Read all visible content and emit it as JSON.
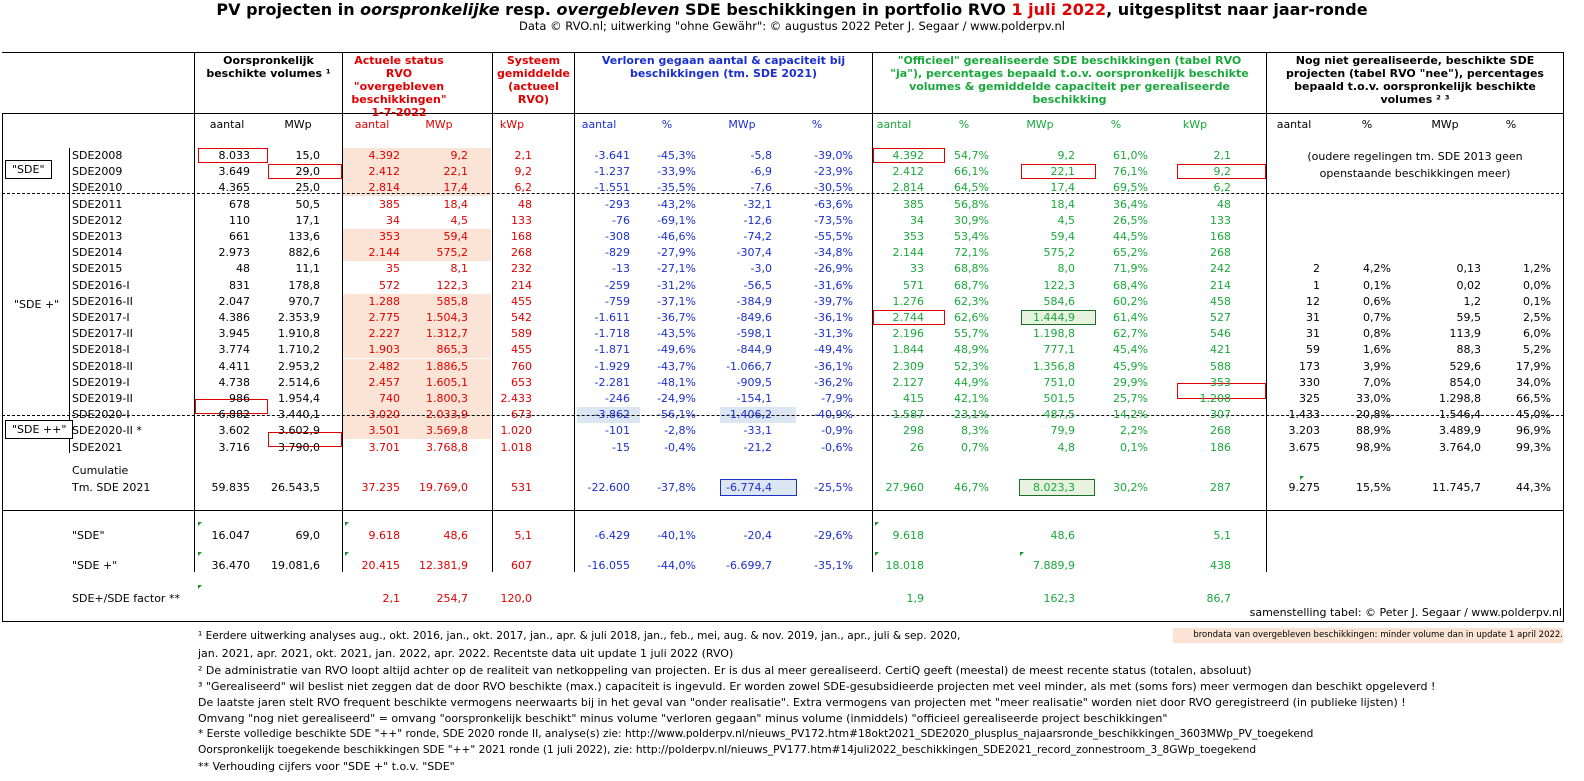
{
  "title": {
    "p1": "PV projecten in ",
    "p2": "oorspronkelijke",
    "p3": "  resp. ",
    "p4": "overgebleven",
    "p5": " SDE beschikkingen in portfolio RVO ",
    "p6": "1 juli 2022",
    "p7": ", uitgesplitst naar jaar-ronde"
  },
  "subtitle": "Data © RVO.nl; uitwerking \"ohne Gewähr\": © augustus 2022 Peter J. Segaar / www.polderpv.nl",
  "headers": {
    "orig": "Oorspronkelijk\nbeschikte volumes ¹",
    "actueel": "Actuele status RVO\n\"overgebleven\nbeschikkingen\"\n1-7-2022",
    "systeem": "Systeem\ngemiddelde\n(actueel\nRVO)",
    "verloren": "Verloren gegaan aantal & capaciteit bij\nbeschikkingen (tm. SDE 2021)",
    "gerealiseerd": "\"Officieel\" gerealiseerde SDE beschikkingen (tabel RVO\n\"ja\"), percentages bepaald t.o.v. oorspronkelijk beschikte\nvolumes & gemiddelde capaciteit per gerealiseerde\nbeschikking",
    "niet": "Nog niet gerealiseerde, beschikte SDE\nprojecten (tabel RVO \"nee\"), percentages\nbepaald t.o.v. oorspronkelijk beschikte\nvolumes ² ³"
  },
  "subheaders": [
    "aantal",
    "MWp",
    "aantal",
    "MWp",
    "kWp",
    "aantal",
    "%",
    "MWp",
    "%",
    "aantal",
    "%",
    "MWp",
    "%",
    "kWp",
    "aantal",
    "%",
    "MWp",
    "%"
  ],
  "groups": {
    "sde": "\"SDE\"",
    "sdeplus": "\"SDE +\"",
    "sdeplusplus": "\"SDE ++\""
  },
  "old_rounds_note": "(oudere regelingen tm. SDE 2013 geen\nopenstaande beschikkingen meer)",
  "rows": [
    {
      "name": "SDE2008",
      "v": [
        "8.033",
        "15,0",
        "4.392",
        "9,2",
        "2,1",
        "-3.641",
        "-45,3%",
        "-5,8",
        "-39,0%",
        "4.392",
        "54,7%",
        "9,2",
        "61,0%",
        "2,1",
        "",
        "",
        "",
        ""
      ]
    },
    {
      "name": "SDE2009",
      "v": [
        "3.649",
        "29,0",
        "2.412",
        "22,1",
        "9,2",
        "-1.237",
        "-33,9%",
        "-6,9",
        "-23,9%",
        "2.412",
        "66,1%",
        "22,1",
        "76,1%",
        "9,2",
        "",
        "",
        "",
        ""
      ]
    },
    {
      "name": "SDE2010",
      "v": [
        "4.365",
        "25,0",
        "2.814",
        "17,4",
        "6,2",
        "-1.551",
        "-35,5%",
        "-7,6",
        "-30,5%",
        "2.814",
        "64,5%",
        "17,4",
        "69,5%",
        "6,2",
        "",
        "",
        "",
        ""
      ]
    },
    {
      "name": "SDE2011",
      "v": [
        "678",
        "50,5",
        "385",
        "18,4",
        "48",
        "-293",
        "-43,2%",
        "-32,1",
        "-63,6%",
        "385",
        "56,8%",
        "18,4",
        "36,4%",
        "48",
        "",
        "",
        "",
        ""
      ]
    },
    {
      "name": "SDE2012",
      "v": [
        "110",
        "17,1",
        "34",
        "4,5",
        "133",
        "-76",
        "-69,1%",
        "-12,6",
        "-73,5%",
        "34",
        "30,9%",
        "4,5",
        "26,5%",
        "133",
        "",
        "",
        "",
        ""
      ]
    },
    {
      "name": "SDE2013",
      "v": [
        "661",
        "133,6",
        "353",
        "59,4",
        "168",
        "-308",
        "-46,6%",
        "-74,2",
        "-55,5%",
        "353",
        "53,4%",
        "59,4",
        "44,5%",
        "168",
        "",
        "",
        "",
        ""
      ]
    },
    {
      "name": "SDE2014",
      "v": [
        "2.973",
        "882,6",
        "2.144",
        "575,2",
        "268",
        "-829",
        "-27,9%",
        "-307,4",
        "-34,8%",
        "2.144",
        "72,1%",
        "575,2",
        "65,2%",
        "268",
        "",
        "",
        "",
        ""
      ]
    },
    {
      "name": "SDE2015",
      "v": [
        "48",
        "11,1",
        "35",
        "8,1",
        "232",
        "-13",
        "-27,1%",
        "-3,0",
        "-26,9%",
        "33",
        "68,8%",
        "8,0",
        "71,9%",
        "242",
        "2",
        "4,2%",
        "0,13",
        "1,2%"
      ]
    },
    {
      "name": "SDE2016-I",
      "v": [
        "831",
        "178,8",
        "572",
        "122,3",
        "214",
        "-259",
        "-31,2%",
        "-56,5",
        "-31,6%",
        "571",
        "68,7%",
        "122,3",
        "68,4%",
        "214",
        "1",
        "0,1%",
        "0,02",
        "0,0%"
      ]
    },
    {
      "name": "SDE2016-II",
      "v": [
        "2.047",
        "970,7",
        "1.288",
        "585,8",
        "455",
        "-759",
        "-37,1%",
        "-384,9",
        "-39,7%",
        "1.276",
        "62,3%",
        "584,6",
        "60,2%",
        "458",
        "12",
        "0,6%",
        "1,2",
        "0,1%"
      ]
    },
    {
      "name": "SDE2017-I",
      "v": [
        "4.386",
        "2.353,9",
        "2.775",
        "1.504,3",
        "542",
        "-1.611",
        "-36,7%",
        "-849,6",
        "-36,1%",
        "2.744",
        "62,6%",
        "1.444,9",
        "61,4%",
        "527",
        "31",
        "0,7%",
        "59,5",
        "2,5%"
      ]
    },
    {
      "name": "SDE2017-II",
      "v": [
        "3.945",
        "1.910,8",
        "2.227",
        "1.312,7",
        "589",
        "-1.718",
        "-43,5%",
        "-598,1",
        "-31,3%",
        "2.196",
        "55,7%",
        "1.198,8",
        "62,7%",
        "546",
        "31",
        "0,8%",
        "113,9",
        "6,0%"
      ]
    },
    {
      "name": "SDE2018-I",
      "v": [
        "3.774",
        "1.710,2",
        "1.903",
        "865,3",
        "455",
        "-1.871",
        "-49,6%",
        "-844,9",
        "-49,4%",
        "1.844",
        "48,9%",
        "777,1",
        "45,4%",
        "421",
        "59",
        "1,6%",
        "88,3",
        "5,2%"
      ]
    },
    {
      "name": "SDE2018-II",
      "v": [
        "4.411",
        "2.953,2",
        "2.482",
        "1.886,5",
        "760",
        "-1.929",
        "-43,7%",
        "-1.066,7",
        "-36,1%",
        "2.309",
        "52,3%",
        "1.356,8",
        "45,9%",
        "588",
        "173",
        "3,9%",
        "529,6",
        "17,9%"
      ]
    },
    {
      "name": "SDE2019-I",
      "v": [
        "4.738",
        "2.514,6",
        "2.457",
        "1.605,1",
        "653",
        "-2.281",
        "-48,1%",
        "-909,5",
        "-36,2%",
        "2.127",
        "44,9%",
        "751,0",
        "29,9%",
        "353",
        "330",
        "7,0%",
        "854,0",
        "34,0%"
      ]
    },
    {
      "name": "SDE2019-II",
      "v": [
        "986",
        "1.954,4",
        "740",
        "1.800,3",
        "2.433",
        "-246",
        "-24,9%",
        "-154,1",
        "-7,9%",
        "415",
        "42,1%",
        "501,5",
        "25,7%",
        "1.208",
        "325",
        "33,0%",
        "1.298,8",
        "66,5%"
      ]
    },
    {
      "name": "SDE2020-I",
      "v": [
        "6.882",
        "3.440,1",
        "3.020",
        "2.033,9",
        "673",
        "-3.862",
        "-56,1%",
        "-1.406,2",
        "-40,9%",
        "1.587",
        "23,1%",
        "487,5",
        "14,2%",
        "307",
        "1.433",
        "20,8%",
        "1.546,4",
        "45,0%"
      ]
    },
    {
      "name": "SDE2020-II *",
      "v": [
        "3.602",
        "3.602,9",
        "3.501",
        "3.569,8",
        "1.020",
        "-101",
        "-2,8%",
        "-33,1",
        "-0,9%",
        "298",
        "8,3%",
        "79,9",
        "2,2%",
        "268",
        "3.203",
        "88,9%",
        "3.489,9",
        "96,9%"
      ]
    },
    {
      "name": "SDE2021",
      "v": [
        "3.716",
        "3.790,0",
        "3.701",
        "3.768,8",
        "1.018",
        "-15",
        "-0,4%",
        "-21,2",
        "-0,6%",
        "26",
        "0,7%",
        "4,8",
        "0,1%",
        "186",
        "3.675",
        "98,9%",
        "3.764,0",
        "99,3%"
      ]
    }
  ],
  "cumulatie": {
    "label1": "Cumulatie",
    "label2": "Tm. SDE 2021",
    "v": [
      "59.835",
      "26.543,5",
      "37.235",
      "19.769,0",
      "531",
      "-22.600",
      "-37,8%",
      "-6.774,4",
      "-25,5%",
      "27.960",
      "46,7%",
      "8.023,3",
      "30,2%",
      "287",
      "9.275",
      "15,5%",
      "11.745,7",
      "44,3%"
    ]
  },
  "summary": [
    {
      "name": "\"SDE\"",
      "v": [
        "16.047",
        "69,0",
        "9.618",
        "48,6",
        "5,1",
        "-6.429",
        "-40,1%",
        "-20,4",
        "-29,6%",
        "9.618",
        "",
        "48,6",
        "",
        "5,1",
        "",
        "",
        "",
        ""
      ]
    },
    {
      "name": "\"SDE +\"",
      "v": [
        "36.470",
        "19.081,6",
        "20.415",
        "12.381,9",
        "607",
        "-16.055",
        "-44,0%",
        "-6.699,7",
        "-35,1%",
        "18.018",
        "",
        "7.889,9",
        "",
        "438",
        "",
        "",
        "",
        ""
      ]
    },
    {
      "name": "SDE+/SDE factor **",
      "v": [
        "",
        "",
        "2,1",
        "254,7",
        "120,0",
        "",
        "",
        "",
        "",
        "1,9",
        "",
        "162,3",
        "",
        "86,7",
        "",
        "",
        "",
        ""
      ]
    }
  ],
  "credit": "samenstelling tabel: © Peter J. Segaar / www.polderpv.nl",
  "legend_shade": "brondata van overgebleven beschikkingen: minder volume dan in update 1 april 2022.",
  "notes": [
    "¹ Eerdere uitwerking analyses aug., okt. 2016, jan., okt.  2017, jan., apr. & juli 2018, jan., feb., mei, aug. & nov. 2019, jan., apr., juli & sep. 2020,",
    "  jan. 2021, apr. 2021, okt. 2021, jan. 2022, apr. 2022. Recentste data uit update 1 juli 2022 (RVO)",
    "² De administratie van RVO loopt altijd achter op de realiteit van netkoppeling van projecten. Er is dus al meer gerealiseerd. CertiQ geeft (meestal) de meest recente status (totalen, absoluut)",
    "³ \"Gerealiseerd\" wil beslist niet zeggen dat de door RVO beschikte (max.) capaciteit is ingevuld. Er worden zowel SDE-gesubsidieerde projecten met veel minder, als met (soms fors) meer vermogen dan beschikt opgeleverd !",
    "De laatste jaren stelt RVO frequent beschikte vermogens neerwaarts bij in het geval van \"onder realisatie\". Extra vermogens van projecten met \"meer realisatie\" worden niet door RVO geregistreerd (in publieke lijsten) !",
    "Omvang \"nog niet gerealiseerd\" = omvang \"oorspronkelijk beschikt\" minus volume \"verloren gegaan\" minus volume (inmiddels) \"officieel gerealiseerde project beschikkingen\"",
    "* Eerste volledige beschikte SDE \"++\" ronde, SDE 2020 ronde II, analyse(s) zie: http://www.polderpv.nl/nieuws_PV172.htm#18okt2021_SDE2020_plusplus_najaarsronde_beschikkingen_3603MWp_PV_toegekend",
    "Oorspronkelijk toegekende beschikkingen SDE \"++\" 2021 ronde (1 juli 2022), zie: http://polderpv.nl/nieuws_PV177.htm#14juli2022_beschikkingen_SDE2021_record_zonnestroom_3_8GWp_toegekend",
    "** Verhouding cijfers voor \"SDE +\" t.o.v. \"SDE\""
  ]
}
